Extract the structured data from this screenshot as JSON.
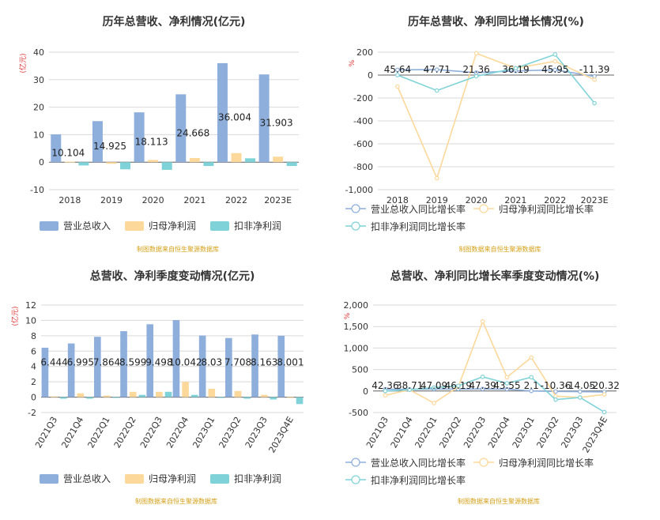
{
  "chart_data": [
    {
      "type": "bar",
      "title": "历年总营收、净利情况(亿元)",
      "ylabel": "(亿元)",
      "ylim": [
        -10,
        40
      ],
      "yticks": [
        -10,
        0,
        10,
        20,
        30,
        40
      ],
      "grid": true,
      "legend_position": "bottom",
      "categories": [
        "2018",
        "2019",
        "2020",
        "2021",
        "2022",
        "2023E"
      ],
      "series": [
        {
          "name": "营业总收入",
          "color": "#8eaedc",
          "values": [
            10.104,
            14.925,
            18.113,
            24.668,
            36.004,
            31.903
          ]
        },
        {
          "name": "归母净利润",
          "color": "#fdd89b",
          "values": [
            0.2,
            -0.6,
            0.8,
            1.5,
            3.3,
            2.0
          ]
        },
        {
          "name": "扣非净利润",
          "color": "#7fd3d8",
          "values": [
            -1.2,
            -2.6,
            -2.8,
            -1.4,
            1.4,
            -1.4
          ]
        }
      ],
      "data_labels": [
        "10.104",
        "14.925",
        "18.113",
        "24.668",
        "36.004",
        "31.903"
      ],
      "source": "制图数据来自恒生聚源数据库"
    },
    {
      "type": "line",
      "title": "历年总营收、净利同比增长情况(%)",
      "ylabel": "%",
      "ylim": [
        -1000,
        200
      ],
      "yticks": [
        -1000,
        -800,
        -600,
        -400,
        -200,
        0,
        200
      ],
      "grid": true,
      "legend_position": "bottom",
      "categories": [
        "2018",
        "2019",
        "2020",
        "2021",
        "2022",
        "2023E"
      ],
      "series": [
        {
          "name": "营业总收入同比增长率",
          "color": "#8eaedc",
          "values": [
            45.64,
            47.71,
            21.36,
            36.19,
            45.95,
            -11.39
          ]
        },
        {
          "name": "归母净利润同比增长率",
          "color": "#fdd89b",
          "values": [
            -100,
            -900,
            190,
            60,
            120,
            -40
          ]
        },
        {
          "name": "扣非净利润同比增长率",
          "color": "#7fd3d8",
          "values": [
            0,
            -135,
            -10,
            60,
            180,
            -245
          ]
        }
      ],
      "data_labels": [
        "45.64",
        "47.71",
        "21.36",
        "36.19",
        "45.95",
        "-11.39"
      ],
      "source": "制图数据来自恒生聚源数据库"
    },
    {
      "type": "bar",
      "title": "总营收、净利季度变动情况(亿元)",
      "ylabel": "(亿元)",
      "ylim": [
        -2,
        12
      ],
      "yticks": [
        -2,
        0,
        2,
        4,
        6,
        8,
        10,
        12
      ],
      "grid": true,
      "legend_position": "bottom",
      "categories": [
        "2021Q3",
        "2021Q4",
        "2022Q1",
        "2022Q2",
        "2022Q3",
        "2022Q4",
        "2023Q1",
        "2023Q2",
        "2023Q3",
        "2023Q4E"
      ],
      "series": [
        {
          "name": "营业总收入",
          "color": "#8eaedc",
          "values": [
            6.444,
            6.995,
            7.864,
            8.599,
            9.498,
            10.042,
            8.03,
            7.708,
            8.163,
            8.001
          ]
        },
        {
          "name": "归母净利润",
          "color": "#fdd89b",
          "values": [
            0.1,
            0.5,
            0.2,
            0.7,
            0.7,
            2.0,
            1.1,
            0.8,
            0.3,
            -0.1
          ]
        },
        {
          "name": "扣非净利润",
          "color": "#7fd3d8",
          "values": [
            -0.2,
            -0.2,
            -0.1,
            0.3,
            0.7,
            0.3,
            -0.1,
            -0.2,
            -0.3,
            -0.9
          ]
        }
      ],
      "data_labels": [
        "6.444",
        "6.995",
        "7.864",
        "8.599",
        "9.498",
        "10.042",
        "8.03",
        "7.708",
        "8.163",
        "8.001"
      ],
      "source": "制图数据来自恒生聚源数据库"
    },
    {
      "type": "line",
      "title": "总营收、净利同比增长率季度变动情况(%)",
      "ylabel": "%",
      "ylim": [
        -500,
        2000
      ],
      "yticks": [
        -500,
        0,
        500,
        1000,
        1500,
        2000
      ],
      "grid": true,
      "legend_position": "bottom",
      "categories": [
        "2021Q3",
        "2021Q4",
        "2022Q1",
        "2022Q2",
        "2022Q3",
        "2022Q4",
        "2023Q1",
        "2023Q2",
        "2023Q3",
        "2023Q4E"
      ],
      "series": [
        {
          "name": "营业总收入同比增长率",
          "color": "#8eaedc",
          "values": [
            42.36,
            38.71,
            47.09,
            46.19,
            47.39,
            43.55,
            2.1,
            -10.36,
            -14.05,
            -20.32
          ]
        },
        {
          "name": "归母净利润同比增长率",
          "color": "#fdd89b",
          "values": [
            -100,
            30,
            -280,
            100,
            1620,
            320,
            780,
            -120,
            -150,
            -80
          ]
        },
        {
          "name": "扣非净利润同比增长率",
          "color": "#7fd3d8",
          "values": [
            0,
            30,
            80,
            120,
            330,
            180,
            320,
            -200,
            -150,
            -490
          ]
        }
      ],
      "data_labels": [
        "42.36",
        "38.71",
        "47.09",
        "46.19",
        "47.39",
        "43.55",
        "2.1",
        "-10.36",
        "-14.05",
        "-20.32"
      ],
      "source": "制图数据来自恒生聚源数据库"
    }
  ]
}
